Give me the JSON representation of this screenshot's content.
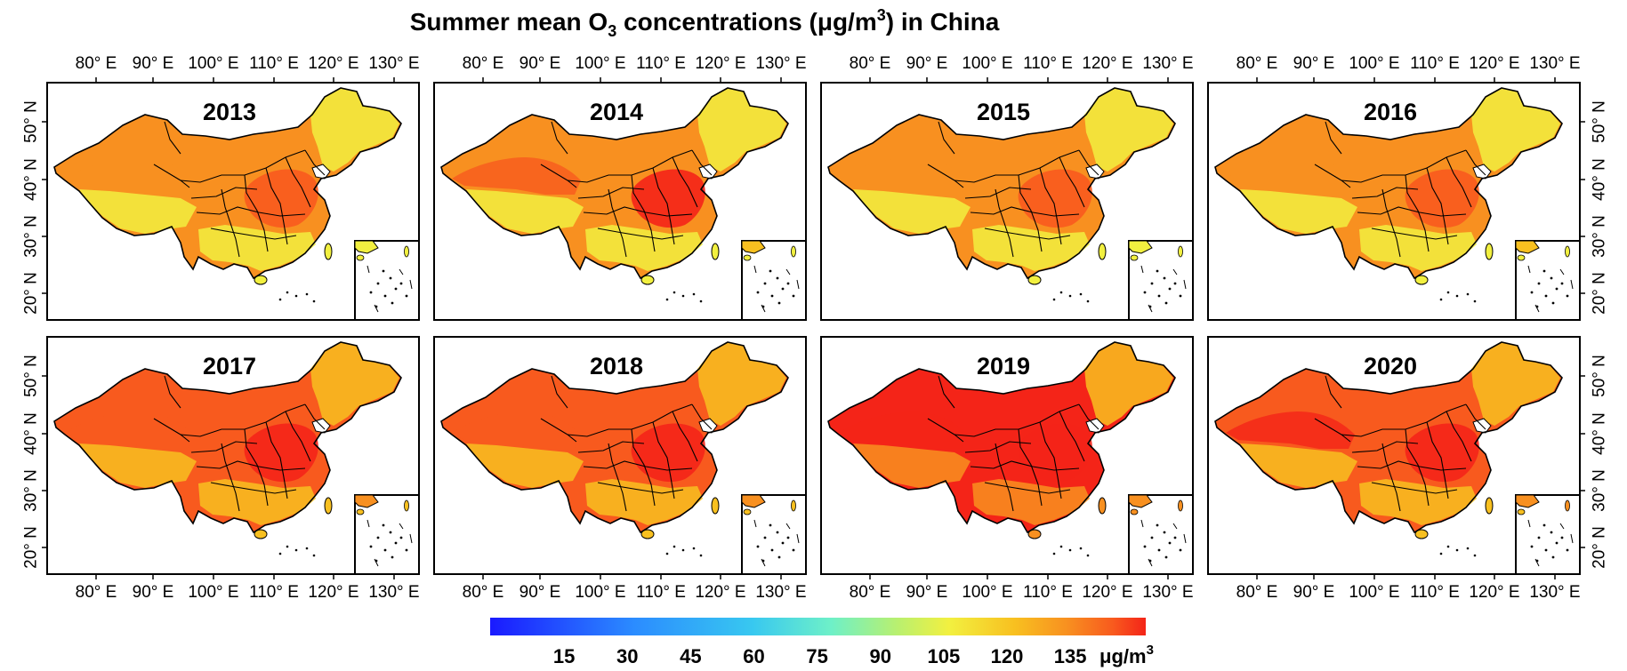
{
  "figure": {
    "title_prefix": "Summer mean O",
    "title_sub": "3",
    "title_middle": " concentrations (μg/m",
    "title_sup": "3",
    "title_suffix": ") in China"
  },
  "lon_ticks": [
    "80° E",
    "90° E",
    "100° E",
    "110° E",
    "120° E",
    "130° E"
  ],
  "lat_ticks": [
    "50° N",
    "40° N",
    "30° N",
    "20° N"
  ],
  "panels": [
    {
      "year": "2013",
      "level": 0.4
    },
    {
      "year": "2014",
      "level": 0.52
    },
    {
      "year": "2015",
      "level": 0.42
    },
    {
      "year": "2016",
      "level": 0.45
    },
    {
      "year": "2017",
      "level": 0.7
    },
    {
      "year": "2018",
      "level": 0.72
    },
    {
      "year": "2019",
      "level": 0.88
    },
    {
      "year": "2020",
      "level": 0.78
    }
  ],
  "colorbar": {
    "ticks": [
      "15",
      "30",
      "45",
      "60",
      "75",
      "90",
      "105",
      "120",
      "135"
    ],
    "unit_prefix": "μg/m",
    "unit_sup": "3",
    "colors": [
      "#1a1aff",
      "#2b8cff",
      "#38c8f0",
      "#6ef0c8",
      "#b8f070",
      "#f2f040",
      "#f8c020",
      "#f89020",
      "#f85a1e",
      "#f42418"
    ]
  }
}
